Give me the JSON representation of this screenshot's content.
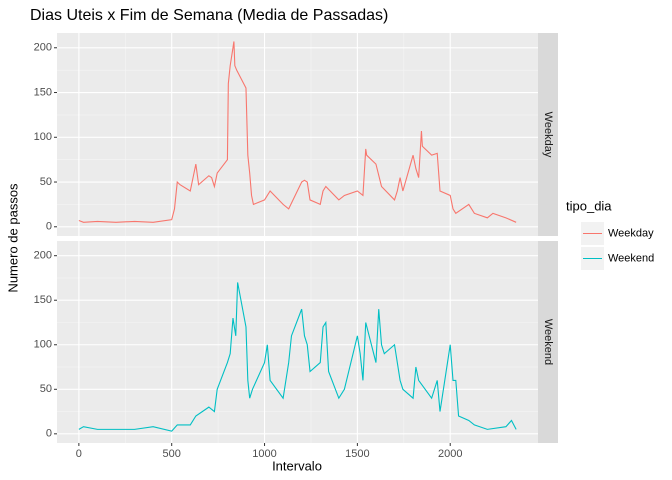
{
  "chart_data": {
    "type": "line",
    "title": "Dias Uteis x Fim de Semana (Media de Passadas)",
    "xlabel": "Intervalo",
    "ylabel": "Numero de passos",
    "legend_title": "tipo_dia",
    "legend_position": "right",
    "grid": true,
    "xlim": [
      -117.75,
      2472.75
    ],
    "xticks": [
      0,
      500,
      1000,
      1500,
      2000
    ],
    "ylim": [
      -10.3,
      216.5
    ],
    "yticks": [
      0,
      50,
      100,
      150,
      200
    ],
    "series": [
      {
        "name": "Weekday",
        "color": "#f8766d",
        "x": [
          0,
          25,
          100,
          200,
          300,
          400,
          500,
          515,
          530,
          545,
          600,
          615,
          630,
          645,
          700,
          715,
          730,
          745,
          800,
          805,
          815,
          830,
          835,
          840,
          850,
          900,
          910,
          920,
          930,
          940,
          1000,
          1030,
          1100,
          1130,
          1200,
          1215,
          1230,
          1245,
          1300,
          1315,
          1330,
          1400,
          1430,
          1500,
          1530,
          1545,
          1550,
          1600,
          1630,
          1700,
          1715,
          1730,
          1745,
          1800,
          1815,
          1830,
          1845,
          1850,
          1900,
          1930,
          1945,
          2000,
          2015,
          2030,
          2100,
          2130,
          2200,
          2230,
          2300,
          2355
        ],
        "values": [
          7,
          5,
          6,
          5,
          6,
          5,
          8,
          20,
          50,
          47,
          40,
          55,
          70,
          47,
          57,
          55,
          45,
          60,
          75,
          160,
          180,
          200,
          207,
          180,
          175,
          155,
          80,
          60,
          35,
          25,
          30,
          40,
          25,
          20,
          50,
          52,
          50,
          30,
          25,
          40,
          45,
          30,
          35,
          40,
          35,
          87,
          80,
          70,
          45,
          30,
          40,
          55,
          40,
          80,
          65,
          55,
          107,
          90,
          80,
          82,
          40,
          35,
          20,
          15,
          25,
          15,
          10,
          15,
          10,
          5
        ]
      },
      {
        "name": "Weekend",
        "color": "#00bfc4",
        "x": [
          0,
          25,
          100,
          200,
          300,
          400,
          500,
          530,
          600,
          630,
          700,
          730,
          745,
          800,
          815,
          830,
          845,
          855,
          900,
          910,
          920,
          935,
          1000,
          1015,
          1030,
          1100,
          1130,
          1145,
          1200,
          1215,
          1230,
          1245,
          1300,
          1315,
          1330,
          1345,
          1400,
          1430,
          1500,
          1515,
          1530,
          1545,
          1600,
          1615,
          1630,
          1645,
          1700,
          1730,
          1745,
          1800,
          1815,
          1830,
          1900,
          1930,
          1945,
          2000,
          2015,
          2030,
          2045,
          2100,
          2130,
          2200,
          2300,
          2330,
          2355
        ],
        "values": [
          5,
          8,
          5,
          5,
          5,
          8,
          3,
          10,
          10,
          20,
          30,
          25,
          50,
          80,
          90,
          130,
          110,
          170,
          120,
          60,
          40,
          50,
          80,
          100,
          60,
          40,
          80,
          110,
          140,
          110,
          100,
          70,
          80,
          120,
          125,
          70,
          40,
          50,
          110,
          90,
          60,
          125,
          80,
          140,
          100,
          90,
          100,
          60,
          50,
          40,
          75,
          60,
          40,
          60,
          25,
          100,
          60,
          60,
          20,
          15,
          10,
          5,
          8,
          15,
          5
        ]
      }
    ]
  }
}
